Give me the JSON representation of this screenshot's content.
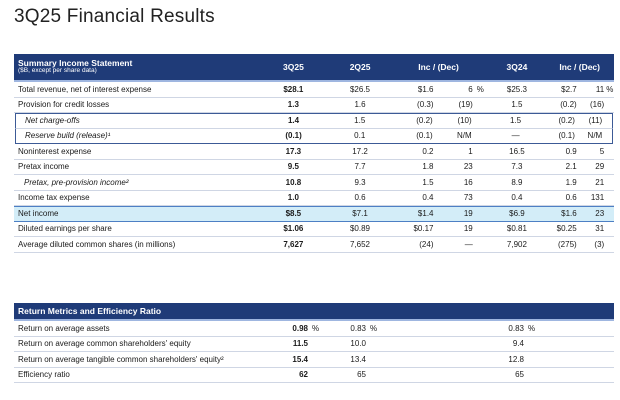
{
  "page": {
    "title": "3Q25 Financial Results"
  },
  "income": {
    "header": {
      "title": "Summary Income Statement",
      "subtitle": "($B, except per share data)",
      "col_3q25": "3Q25",
      "col_2q25": "2Q25",
      "col_inc1": "Inc / (Dec)",
      "col_3q24": "3Q24",
      "col_inc2": "Inc / (Dec)"
    },
    "rows": [
      {
        "label": "Total revenue, net of interest expense",
        "v3q25": "$28.1",
        "v2q25": "$26.5",
        "inc1a": "$1.6",
        "inc1b": "6",
        "inc1pct": "%",
        "v3q24": "$25.3",
        "inc2a": "$2.7",
        "inc2b": "11",
        "inc2pct": "%"
      },
      {
        "label": "Provision for credit losses",
        "v3q25": "1.3",
        "v2q25": "1.6",
        "inc1a": "(0.3)",
        "inc1b": "(19)",
        "inc1pct": "",
        "v3q24": "1.5",
        "inc2a": "(0.2)",
        "inc2b": "(16)",
        "inc2pct": ""
      },
      {
        "label": "Net charge-offs",
        "v3q25": "1.4",
        "v2q25": "1.5",
        "inc1a": "(0.2)",
        "inc1b": "(10)",
        "inc1pct": "",
        "v3q24": "1.5",
        "inc2a": "(0.2)",
        "inc2b": "(11)",
        "inc2pct": ""
      },
      {
        "label": "Reserve build (release)¹",
        "v3q25": "(0.1)",
        "v2q25": "0.1",
        "inc1a": "(0.1)",
        "inc1b": "N/M",
        "inc1pct": "",
        "v3q24": "—",
        "inc2a": "(0.1)",
        "inc2b": "N/M",
        "inc2pct": ""
      },
      {
        "label": "Noninterest expense",
        "v3q25": "17.3",
        "v2q25": "17.2",
        "inc1a": "0.2",
        "inc1b": "1",
        "inc1pct": "",
        "v3q24": "16.5",
        "inc2a": "0.9",
        "inc2b": "5",
        "inc2pct": ""
      },
      {
        "label": "Pretax income",
        "v3q25": "9.5",
        "v2q25": "7.7",
        "inc1a": "1.8",
        "inc1b": "23",
        "inc1pct": "",
        "v3q24": "7.3",
        "inc2a": "2.1",
        "inc2b": "29",
        "inc2pct": ""
      },
      {
        "label": "Pretax, pre-provision income²",
        "v3q25": "10.8",
        "v2q25": "9.3",
        "inc1a": "1.5",
        "inc1b": "16",
        "inc1pct": "",
        "v3q24": "8.9",
        "inc2a": "1.9",
        "inc2b": "21",
        "inc2pct": ""
      },
      {
        "label": "Income tax expense",
        "v3q25": "1.0",
        "v2q25": "0.6",
        "inc1a": "0.4",
        "inc1b": "73",
        "inc1pct": "",
        "v3q24": "0.4",
        "inc2a": "0.6",
        "inc2b": "131",
        "inc2pct": ""
      },
      {
        "label": "Net income",
        "v3q25": "$8.5",
        "v2q25": "$7.1",
        "inc1a": "$1.4",
        "inc1b": "19",
        "inc1pct": "",
        "v3q24": "$6.9",
        "inc2a": "$1.6",
        "inc2b": "23",
        "inc2pct": ""
      },
      {
        "label": "Diluted earnings per share",
        "v3q25": "$1.06",
        "v2q25": "$0.89",
        "inc1a": "$0.17",
        "inc1b": "19",
        "inc1pct": "",
        "v3q24": "$0.81",
        "inc2a": "$0.25",
        "inc2b": "31",
        "inc2pct": ""
      },
      {
        "label": "Average diluted common shares (in millions)",
        "v3q25": "7,627",
        "v2q25": "7,652",
        "inc1a": "(24)",
        "inc1b": "—",
        "inc1pct": "",
        "v3q24": "7,902",
        "inc2a": "(275)",
        "inc2b": "(3)",
        "inc2pct": ""
      }
    ]
  },
  "returns": {
    "header": {
      "title": "Return Metrics and Efficiency Ratio"
    },
    "rows": [
      {
        "label": "Return on average assets",
        "v3q25": "0.98",
        "p3q25": "%",
        "v2q25": "0.83",
        "p2q25": "%",
        "v3q24": "0.83",
        "p3q24": "%"
      },
      {
        "label": "Return on average common shareholders' equity",
        "v3q25": "11.5",
        "p3q25": "",
        "v2q25": "10.0",
        "p2q25": "",
        "v3q24": "9.4",
        "p3q24": ""
      },
      {
        "label": "Return on average tangible common shareholders' equity²",
        "v3q25": "15.4",
        "p3q25": "",
        "v2q25": "13.4",
        "p2q25": "",
        "v3q24": "12.8",
        "p3q24": ""
      },
      {
        "label": "Efficiency ratio",
        "v3q25": "62",
        "p3q25": "",
        "v2q25": "65",
        "p2q25": "",
        "v3q24": "65",
        "p3q24": ""
      }
    ]
  },
  "colors": {
    "header_bg": "#1f3b78",
    "highlight_bg": "#d3edf8",
    "box_border": "#3c5a96"
  }
}
